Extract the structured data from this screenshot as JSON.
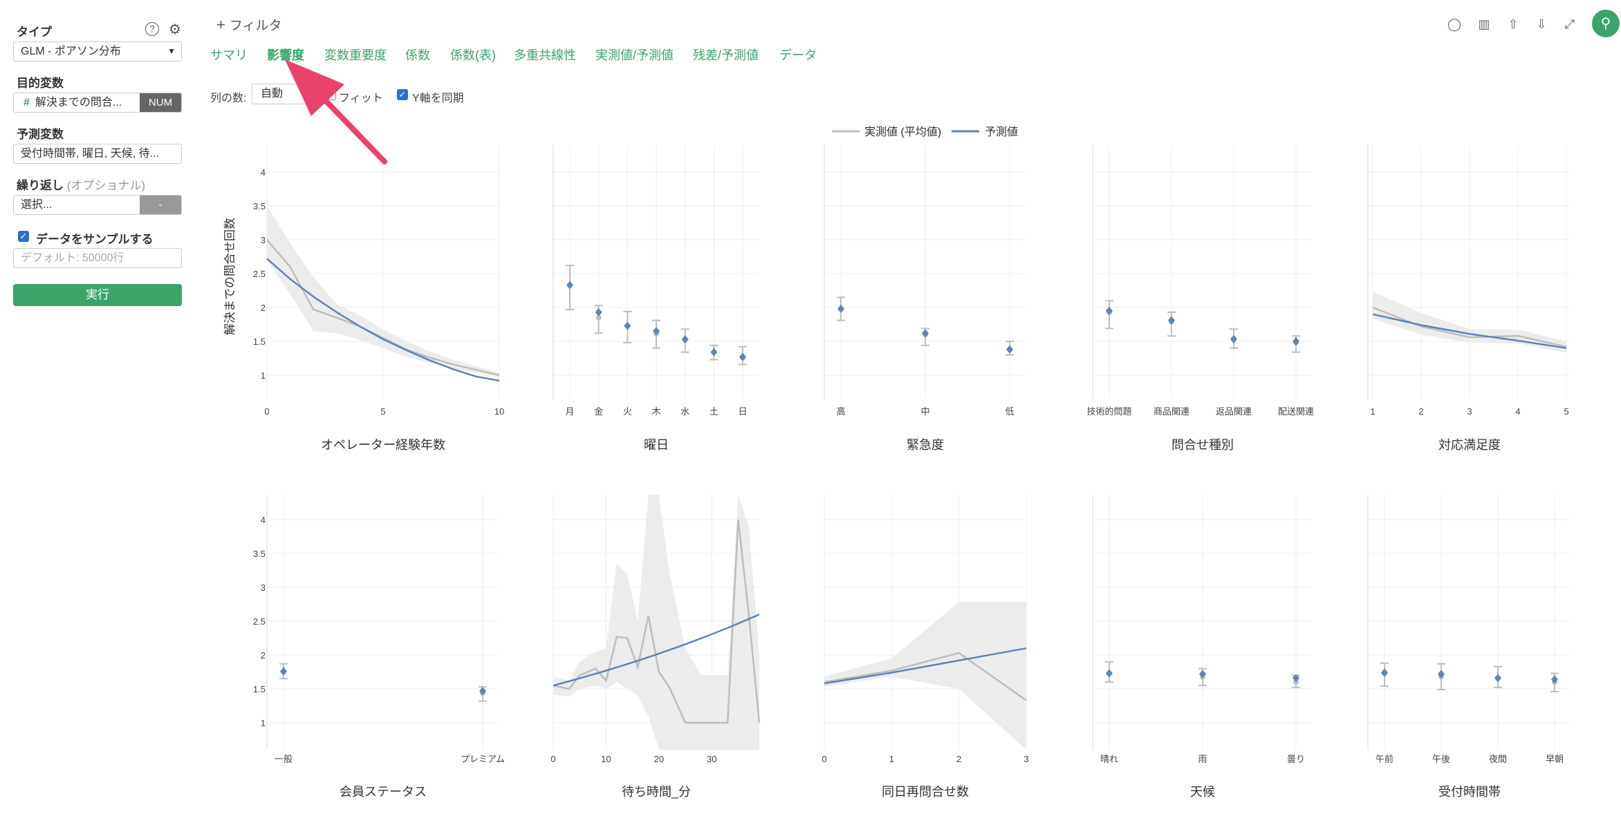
{
  "sidebar": {
    "type_label": "タイプ",
    "type_value": "GLM - ポアソン分布",
    "target_label": "目的変数",
    "target_value": "解決までの問合...",
    "target_tag": "NUM",
    "predictor_label": "予測変数",
    "predictor_value": "受付時間帯, 曜日, 天候, 待...",
    "repeat_label": "繰り返し",
    "repeat_optional": "(オプショナル)",
    "repeat_value": "選択...",
    "repeat_tag": "-",
    "sample_label": "データをサンプルする",
    "sample_placeholder": "デフォルト: 50000行",
    "run_label": "実行",
    "help_icon": "question-icon",
    "settings_icon": "gear-icon"
  },
  "header": {
    "filter_label": "フィルタ",
    "tabs": [
      "サマリ",
      "影響度",
      "変数重要度",
      "係数",
      "係数(表)",
      "多重共線性",
      "実測値/予測値",
      "残差/予測値",
      "データ"
    ],
    "active_tab": 1,
    "cols_label": "列の数:",
    "cols_value": "自動",
    "fit_label": "フィット",
    "sync_label": "Y軸を同期",
    "icons": [
      "comment-icon",
      "chart-icon",
      "upload-icon",
      "download-icon",
      "expand-icon",
      "pin-icon"
    ]
  },
  "chart_data": {
    "type": "line",
    "ylabel": "解決までの問合せ回数",
    "legend": [
      {
        "name": "実測値 (平均値)",
        "color": "#c0c0c0"
      },
      {
        "name": "予測値",
        "color": "#5b86b5"
      }
    ],
    "colors": {
      "actual": "#bdbdbd",
      "predicted": "#5b86b5",
      "band": "#ececec"
    },
    "ylim": [
      0.5,
      4.4
    ],
    "yticks": [
      1,
      1.5,
      2,
      2.5,
      3,
      3.5,
      4
    ],
    "panels": [
      {
        "title": "オペレーター経験年数",
        "kind": "line",
        "xlim": [
          0,
          10
        ],
        "xticks": [
          0,
          5,
          10
        ],
        "actual": {
          "x": [
            0,
            1,
            2,
            3,
            4,
            5,
            6,
            7,
            8,
            9,
            10
          ],
          "y": [
            3.0,
            2.6,
            1.97,
            1.85,
            1.72,
            1.55,
            1.38,
            1.26,
            1.16,
            1.08,
            1.0
          ]
        },
        "band": {
          "x": [
            0,
            1,
            2,
            3,
            4,
            5,
            6,
            7,
            8,
            9,
            10
          ],
          "lo": [
            2.7,
            2.2,
            1.65,
            1.62,
            1.52,
            1.4,
            1.27,
            1.18,
            1.1,
            1.04,
            0.97
          ],
          "hi": [
            3.5,
            2.95,
            2.45,
            2.05,
            1.88,
            1.68,
            1.5,
            1.35,
            1.23,
            1.13,
            1.04
          ]
        },
        "predicted": {
          "x": [
            0,
            1,
            2,
            3,
            4,
            5,
            6,
            7,
            8,
            9,
            10
          ],
          "y": [
            2.72,
            2.42,
            2.16,
            1.93,
            1.72,
            1.53,
            1.37,
            1.22,
            1.09,
            0.98,
            0.92
          ]
        }
      },
      {
        "title": "曜日",
        "kind": "cat",
        "categories": [
          "月",
          "金",
          "火",
          "木",
          "水",
          "土",
          "日"
        ],
        "actual": [
          2.33,
          1.85,
          1.73,
          1.61,
          1.52,
          1.34,
          1.26
        ],
        "lo": [
          1.97,
          1.62,
          1.48,
          1.4,
          1.34,
          1.23,
          1.16
        ],
        "hi": [
          2.62,
          2.03,
          1.94,
          1.81,
          1.68,
          1.44,
          1.42
        ],
        "predicted": [
          2.33,
          1.93,
          1.73,
          1.65,
          1.53,
          1.34,
          1.27
        ]
      },
      {
        "title": "緊急度",
        "kind": "cat",
        "categories": [
          "高",
          "中",
          "低"
        ],
        "actual": [
          1.98,
          1.6,
          1.38
        ],
        "lo": [
          1.81,
          1.44,
          1.3
        ],
        "hi": [
          2.15,
          1.69,
          1.5
        ],
        "predicted": [
          1.98,
          1.62,
          1.38
        ]
      },
      {
        "title": "問合せ種別",
        "kind": "cat",
        "categories": [
          "技術的問題",
          "商品関連",
          "返品関連",
          "配送関連"
        ],
        "actual": [
          1.93,
          1.79,
          1.54,
          1.48
        ],
        "lo": [
          1.69,
          1.58,
          1.4,
          1.34
        ],
        "hi": [
          2.1,
          1.93,
          1.68,
          1.58
        ],
        "predicted": [
          1.95,
          1.81,
          1.53,
          1.5
        ]
      },
      {
        "title": "対応満足度",
        "kind": "line",
        "xlim": [
          0.9,
          5.1
        ],
        "xticks": [
          1,
          2,
          3,
          4,
          5
        ],
        "actual": {
          "x": [
            1,
            2,
            3,
            4,
            5
          ],
          "y": [
            2.0,
            1.72,
            1.56,
            1.58,
            1.42
          ]
        },
        "band": {
          "x": [
            1,
            2,
            3,
            4,
            5
          ],
          "lo": [
            1.83,
            1.6,
            1.48,
            1.47,
            1.33
          ],
          "hi": [
            2.23,
            1.92,
            1.68,
            1.67,
            1.5
          ]
        },
        "predicted": {
          "x": [
            1,
            2,
            3,
            4,
            5
          ],
          "y": [
            1.9,
            1.74,
            1.61,
            1.51,
            1.4
          ]
        }
      },
      {
        "title": "会員ステータス",
        "kind": "cat",
        "categories": [
          "一般",
          "プレミアム"
        ],
        "actual": [
          1.75,
          1.44
        ],
        "lo": [
          1.65,
          1.32
        ],
        "hi": [
          1.87,
          1.53
        ],
        "predicted": [
          1.76,
          1.47
        ]
      },
      {
        "title": "待ち時間_分",
        "kind": "line",
        "xlim": [
          0,
          39
        ],
        "xticks": [
          0,
          10,
          20,
          30
        ],
        "actual": {
          "x": [
            0,
            3,
            5,
            8,
            10,
            12,
            14,
            16,
            18,
            20,
            22,
            25,
            28,
            30,
            33,
            35,
            37,
            39
          ],
          "y": [
            1.55,
            1.5,
            1.7,
            1.8,
            1.62,
            2.27,
            2.25,
            1.82,
            2.58,
            1.75,
            1.52,
            1.0,
            1.0,
            1.0,
            1.0,
            4.0,
            2.6,
            1.0
          ]
        },
        "band": {
          "x": [
            0,
            3,
            5,
            8,
            10,
            12,
            14,
            16,
            18,
            20,
            22,
            25,
            28,
            30,
            33,
            35,
            37,
            39
          ],
          "lo": [
            1.42,
            1.38,
            1.5,
            1.55,
            1.5,
            1.6,
            1.5,
            1.4,
            1.1,
            0.5,
            0.5,
            0.5,
            0.5,
            0.5,
            0.5,
            0.5,
            0.5,
            0.5
          ],
          "hi": [
            1.68,
            1.62,
            1.9,
            2.05,
            2.1,
            3.35,
            3.2,
            2.5,
            4.4,
            4.4,
            3.2,
            2.1,
            1.7,
            1.7,
            1.7,
            4.4,
            3.9,
            2.0
          ]
        },
        "predicted": {
          "x": [
            0,
            39
          ],
          "y": [
            1.55,
            2.6
          ]
        },
        "predicted_curve": true
      },
      {
        "title": "同日再問合せ数",
        "kind": "line",
        "xlim": [
          0,
          3
        ],
        "xticks": [
          0,
          1,
          2,
          3
        ],
        "actual": {
          "x": [
            0,
            1,
            2,
            3
          ],
          "y": [
            1.6,
            1.77,
            2.03,
            1.33
          ]
        },
        "band": {
          "x": [
            0,
            1,
            2,
            3
          ],
          "lo": [
            1.53,
            1.68,
            1.5,
            0.5
          ],
          "hi": [
            1.68,
            1.95,
            2.78,
            2.78
          ]
        },
        "predicted": {
          "x": [
            0,
            1,
            2,
            3
          ],
          "y": [
            1.58,
            1.74,
            1.92,
            2.1
          ]
        }
      },
      {
        "title": "天候",
        "kind": "cat",
        "categories": [
          "晴れ",
          "雨",
          "曇り"
        ],
        "actual": [
          1.73,
          1.68,
          1.6
        ],
        "lo": [
          1.6,
          1.55,
          1.52
        ],
        "hi": [
          1.9,
          1.8,
          1.7
        ],
        "predicted": [
          1.73,
          1.72,
          1.66
        ]
      },
      {
        "title": "受付時間帯",
        "kind": "cat",
        "categories": [
          "午前",
          "午後",
          "夜間",
          "早朝"
        ],
        "actual": [
          1.73,
          1.68,
          1.66,
          1.6
        ],
        "lo": [
          1.54,
          1.49,
          1.52,
          1.46
        ],
        "hi": [
          1.88,
          1.87,
          1.83,
          1.73
        ],
        "predicted": [
          1.74,
          1.72,
          1.66,
          1.64
        ]
      }
    ]
  }
}
